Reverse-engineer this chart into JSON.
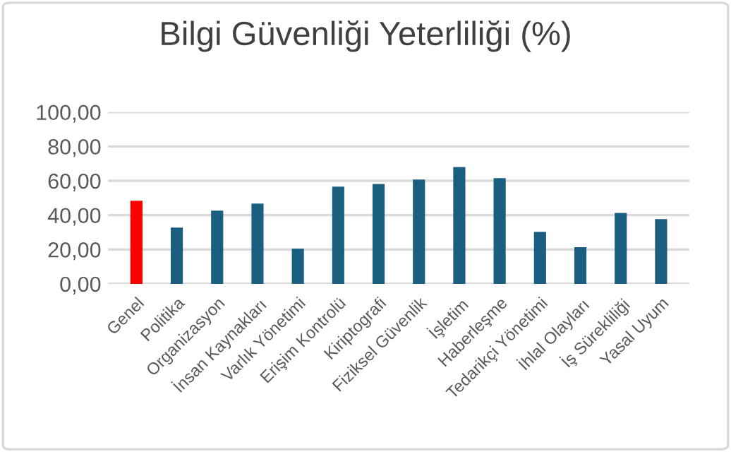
{
  "chart_data": {
    "type": "bar",
    "title": "Bilgi Güvenliği Yeterliliği (%)",
    "categories": [
      "Genel",
      "Politika",
      "Organizasyon",
      "İnsan Kaynakları",
      "Varlık Yönetimi",
      "Erişim Kontrolü",
      "Kiriptografi",
      "Fiziksel Güvenlik",
      "İşletim",
      "Haberleşme",
      "Tedarikçi Yönetimi",
      "İhlal Olayları",
      "İş Sürekliliği",
      "Yasal Uyum"
    ],
    "values": [
      48.4,
      32.8,
      42.6,
      46.7,
      20.5,
      56.6,
      58.2,
      60.7,
      68.0,
      61.5,
      30.3,
      21.3,
      41.3,
      37.7
    ],
    "colors": [
      "#ff0000",
      "#1a5e80",
      "#1a5e80",
      "#1a5e80",
      "#1a5e80",
      "#1a5e80",
      "#1a5e80",
      "#1a5e80",
      "#1a5e80",
      "#1a5e80",
      "#1a5e80",
      "#1a5e80",
      "#1a5e80",
      "#1a5e80"
    ],
    "ylim": [
      0,
      100
    ],
    "yticks": [
      {
        "value": 0,
        "label": "0,00"
      },
      {
        "value": 20,
        "label": "20,00"
      },
      {
        "value": 40,
        "label": "40,00"
      },
      {
        "value": 60,
        "label": "60,00"
      },
      {
        "value": 80,
        "label": "80,00"
      },
      {
        "value": 100,
        "label": "100,00"
      }
    ],
    "grid": "y"
  }
}
